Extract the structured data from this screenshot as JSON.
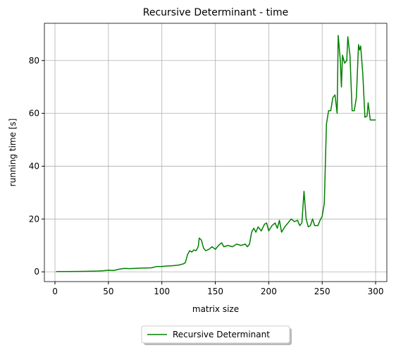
{
  "chart_data": {
    "type": "line",
    "title": "Recursive Determinant - time",
    "x_label": "matrix size",
    "y_label": "running time [s]",
    "x": [
      1,
      10,
      20,
      30,
      40,
      45,
      50,
      55,
      60,
      65,
      70,
      75,
      80,
      90,
      95,
      100,
      105,
      110,
      115,
      120,
      122,
      124,
      126,
      128,
      130,
      132,
      134,
      135,
      137,
      139,
      141,
      144,
      147,
      150,
      153,
      156,
      158,
      162,
      166,
      170,
      174,
      178,
      180,
      182,
      184,
      186,
      188,
      190,
      193,
      196,
      198,
      200,
      203,
      206,
      208,
      210,
      212,
      215,
      218,
      221,
      224,
      227,
      229,
      231,
      233,
      235,
      237,
      239,
      241,
      243,
      246,
      248,
      250,
      252,
      254,
      256,
      258,
      260,
      262,
      264,
      265,
      267,
      268,
      269,
      271,
      273,
      274,
      276,
      278,
      280,
      282,
      284,
      285,
      286,
      288,
      290,
      292,
      293,
      295,
      297,
      300
    ],
    "series": [
      {
        "name": "Recursive Determinant",
        "color": "#008000",
        "values": [
          0.1,
          0.1,
          0.15,
          0.2,
          0.3,
          0.4,
          0.6,
          0.5,
          1.0,
          1.3,
          1.2,
          1.3,
          1.4,
          1.5,
          2.0,
          2.0,
          2.2,
          2.3,
          2.5,
          3.0,
          3.5,
          6.5,
          8.0,
          7.5,
          8.3,
          8.0,
          9.5,
          12.8,
          12.0,
          9.0,
          8.0,
          8.5,
          9.5,
          8.5,
          10.0,
          11.0,
          9.5,
          10.0,
          9.5,
          10.5,
          10.0,
          10.5,
          9.5,
          10.5,
          15.0,
          16.5,
          15.0,
          17.0,
          15.5,
          18.0,
          18.5,
          15.5,
          17.5,
          18.5,
          16.5,
          19.5,
          15.0,
          17.0,
          18.5,
          20.0,
          19.0,
          19.5,
          17.5,
          18.5,
          30.5,
          20.0,
          17.0,
          17.5,
          20.0,
          17.5,
          17.5,
          19.5,
          21.0,
          26.0,
          56.0,
          61.0,
          61.0,
          66.0,
          67.0,
          60.0,
          89.5,
          80.0,
          70.0,
          82.0,
          79.0,
          80.0,
          89.0,
          82.0,
          61.0,
          61.0,
          66.0,
          86.0,
          84.0,
          85.5,
          75.0,
          58.5,
          59.0,
          64.0,
          57.5,
          57.5,
          57.5
        ]
      }
    ],
    "xlim": [
      -9.9,
      310.5
    ],
    "ylim": [
      -3.7,
      94.1
    ],
    "xticks": [
      0,
      50,
      100,
      150,
      200,
      250,
      300
    ],
    "yticks": [
      0,
      20,
      40,
      60,
      80
    ],
    "grid": true,
    "legend": "lower center"
  }
}
